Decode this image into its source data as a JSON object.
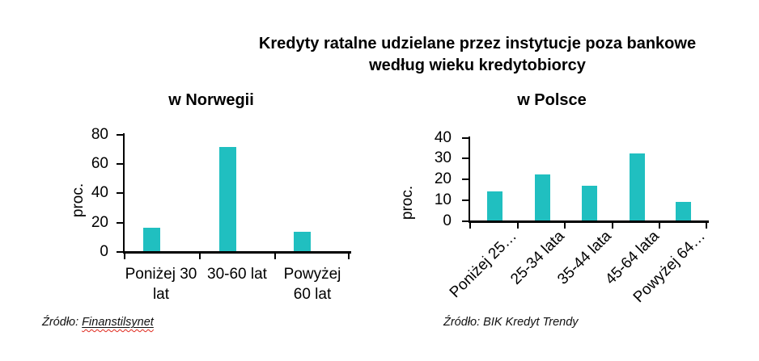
{
  "title": {
    "line1": "Kredyty ratalne udzielane przez instytucje poza bankowe",
    "line2": "według wieku kredytobiorcy"
  },
  "bar_color": "#20BFC0",
  "axis_color": "#000000",
  "chart_data": [
    {
      "type": "bar",
      "title": "w Norwegii",
      "ylabel": "proc.",
      "xlabel": "",
      "ylim": [
        0,
        80
      ],
      "yticks": [
        0,
        20,
        40,
        60,
        80
      ],
      "categories": [
        "Poniżej 30 lat",
        "30-60 lat",
        "Powyżej 60 lat"
      ],
      "category_display": [
        [
          "Poniżej 30",
          "lat"
        ],
        [
          "30-60 lat"
        ],
        [
          "Powyżej",
          "60 lat"
        ]
      ],
      "values": [
        16,
        71,
        13
      ],
      "grid": false,
      "legend": "none",
      "source_prefix": "Źródło: ",
      "source_name": "Finanstilsynet",
      "source_name_underlined": true
    },
    {
      "type": "bar",
      "title": "w Polsce",
      "ylabel": "proc.",
      "xlabel": "",
      "ylim": [
        0,
        40
      ],
      "yticks": [
        0,
        10,
        20,
        30,
        40
      ],
      "categories": [
        "Poniżej 25…",
        "25-34 lata",
        "35-44 lata",
        "45-64 lata",
        "Powyżej 64…"
      ],
      "values": [
        14,
        22,
        16.5,
        32,
        9
      ],
      "grid": false,
      "legend": "none",
      "source_prefix": "Źródło: ",
      "source_name": "BIK Kredyt Trendy",
      "source_name_underlined": false
    }
  ]
}
